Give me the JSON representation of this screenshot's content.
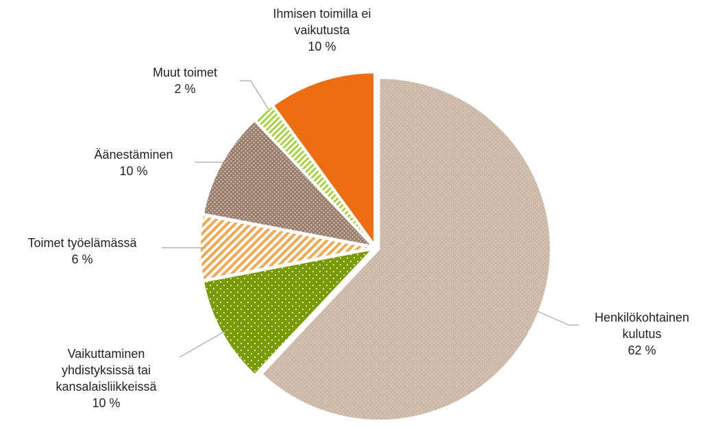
{
  "chart_data": {
    "type": "pie",
    "categories": [
      "Henkilökohtainen kulutus",
      "Vaikuttaminen yhdistyksissä tai kansalaisliikkeissä",
      "Toimet työelämässä",
      "Äänestäminen",
      "Muut toimet",
      "Ihmisen toimilla ei vaikutusta"
    ],
    "values": [
      62,
      10,
      6,
      10,
      2,
      10
    ],
    "value_labels": [
      "62 %",
      "10 %",
      "6 %",
      "10 %",
      "2 %",
      "10 %"
    ],
    "colors": [
      "#cdb9a8",
      "#7a9a01",
      "#f2a850",
      "#9a7d6b",
      "#a7d13e",
      "#ed6d13"
    ]
  }
}
